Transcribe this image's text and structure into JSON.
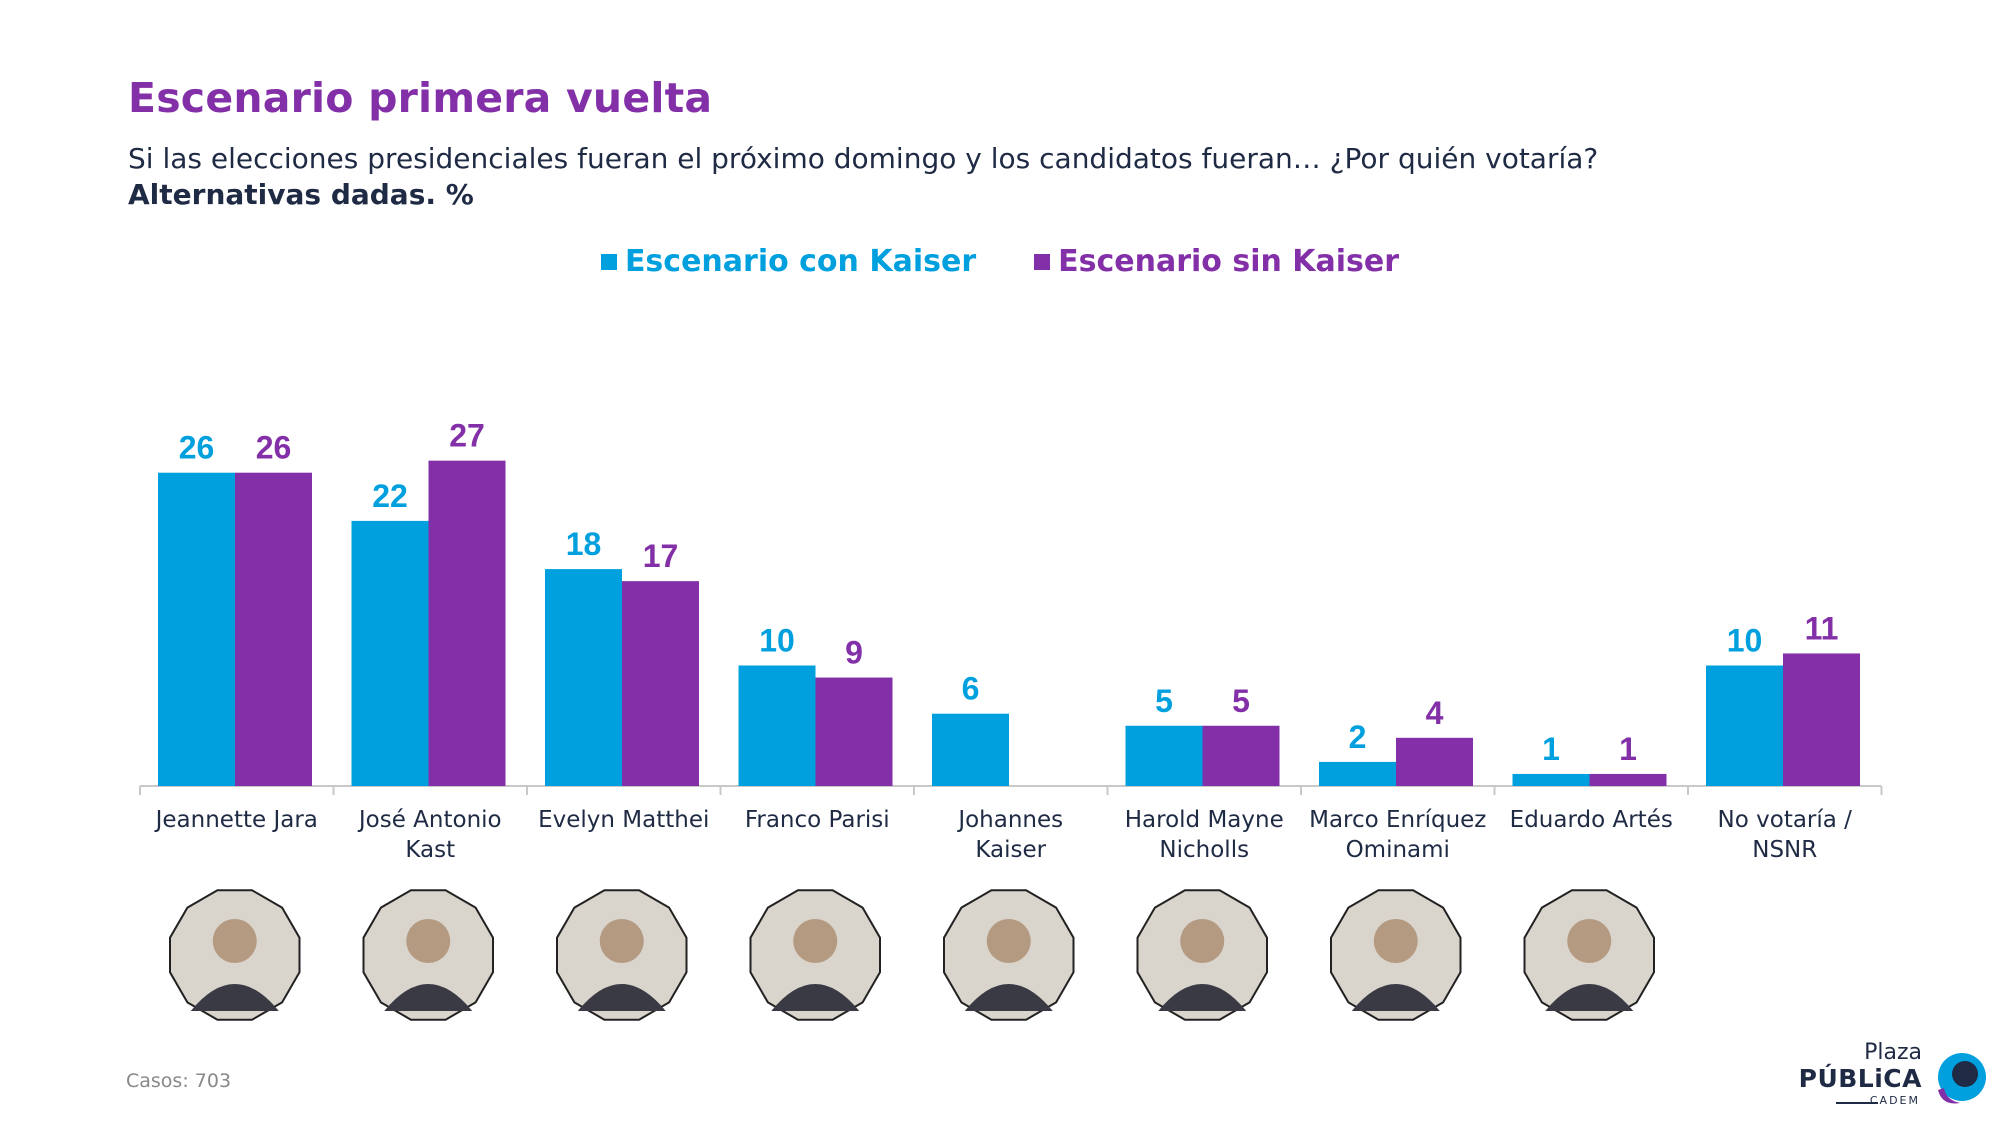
{
  "header": {
    "title": "Escenario primera vuelta",
    "subtitle": "Si las elecciones presidenciales fueran el próximo domingo y los candidatos fueran… ¿Por quién votaría?",
    "note": "Alternativas dadas. %"
  },
  "legend": {
    "series_a": "Escenario con Kaiser",
    "series_b": "Escenario sin Kaiser"
  },
  "colors": {
    "series_a": "#00a0de",
    "series_b": "#8330a8",
    "title": "#8330a8",
    "text": "#1f2a44"
  },
  "chart_data": {
    "type": "bar",
    "categories": [
      [
        "Jeannette Jara"
      ],
      [
        "José Antonio",
        "Kast"
      ],
      [
        "Evelyn Matthei"
      ],
      [
        "Franco Parisi"
      ],
      [
        "Johannes",
        "Kaiser"
      ],
      [
        "Harold Mayne",
        "Nicholls"
      ],
      [
        "Marco Enríquez",
        "Ominami"
      ],
      [
        "Eduardo Artés"
      ],
      [
        "No votaría /",
        "NSNR"
      ]
    ],
    "series": [
      {
        "name": "Escenario con Kaiser",
        "values": [
          26,
          22,
          18,
          10,
          6,
          5,
          2,
          1,
          10
        ]
      },
      {
        "name": "Escenario sin Kaiser",
        "values": [
          26,
          27,
          17,
          9,
          null,
          5,
          4,
          1,
          11
        ]
      }
    ],
    "ylim": [
      0,
      27
    ],
    "grid": false,
    "legend_position": "top-center",
    "photos": [
      "jeannette-jara",
      "jose-antonio-kast",
      "evelyn-matthei",
      "franco-parisi",
      "johannes-kaiser",
      "harold-mayne-nicholls",
      "marco-enriquez-ominami",
      "eduardo-artes",
      null
    ]
  },
  "footer": {
    "cases": "Casos: 703"
  },
  "logo": {
    "line1": "Plaza",
    "line2": "PÚBLiCA",
    "line3": "CADEM"
  }
}
